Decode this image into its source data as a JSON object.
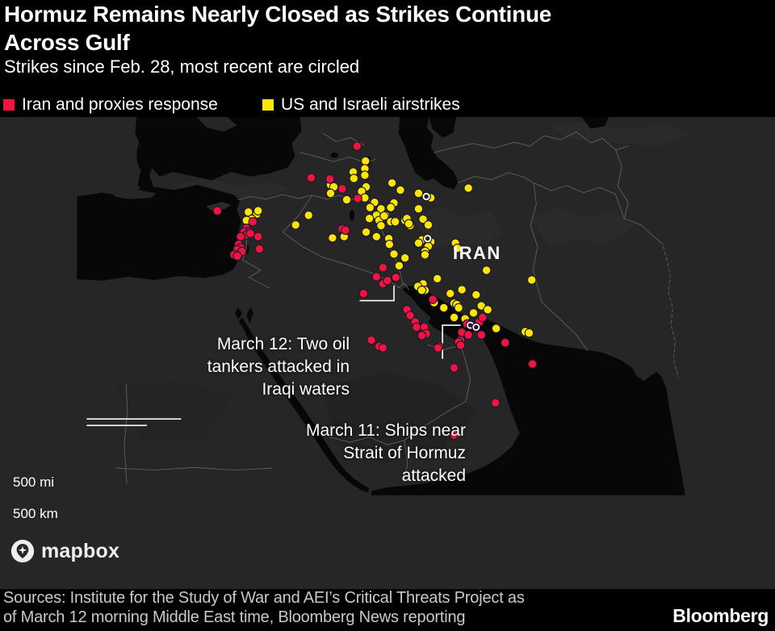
{
  "header": {
    "title_line1": "Hormuz Remains Nearly Closed as Strikes Continue",
    "title_line2": "Across Gulf",
    "subtitle": "Strikes since Feb. 28, most recent are circled",
    "legend": [
      {
        "label": "Iran and proxies response",
        "color": "#f2143e"
      },
      {
        "label": "US and Israeli airstrikes",
        "color": "#ffe600"
      }
    ]
  },
  "map": {
    "country_label": "IRAN",
    "annotations": [
      {
        "lines": [
          "March 12: Two oil",
          "tankers attacked in",
          "Iraqi waters"
        ]
      },
      {
        "lines": [
          "March 11: Ships near",
          "Strait of Hormuz",
          "attacked"
        ]
      }
    ],
    "scale": {
      "miles_label": "500 mi",
      "km_label": "500 km"
    },
    "attribution": "mapbox"
  },
  "footer": {
    "sources_line1": "Sources: Institute for the Study of War and AEI’s Critical Threats Project as",
    "sources_line2": "of March 12 morning Middle East time, Bloomberg News reporting",
    "brand": "Bloomberg"
  },
  "chart_data": {
    "type": "scatter",
    "title": "Hormuz Remains Nearly Closed as Strikes Continue Across Gulf",
    "subtitle": "Strikes since Feb. 28, most recent are circled",
    "coordinate_system": "screen pixels of 960x782 image, map area y 145-730",
    "legend_position": "top",
    "series": [
      {
        "name": "Iran and proxies response",
        "color": "#f2143e",
        "points": [
          [
            217,
            290
          ],
          [
            272,
            307
          ],
          [
            262,
            317
          ],
          [
            265,
            322
          ],
          [
            258,
            323
          ],
          [
            263,
            327
          ],
          [
            268,
            325
          ],
          [
            253,
            330
          ],
          [
            280,
            330
          ],
          [
            250,
            342
          ],
          [
            253,
            347
          ],
          [
            248,
            350
          ],
          [
            255,
            353
          ],
          [
            243,
            358
          ],
          [
            248,
            360
          ],
          [
            282,
            349
          ],
          [
            433,
            190
          ],
          [
            362,
            239
          ],
          [
            391,
            241
          ],
          [
            410,
            256
          ],
          [
            434,
            271
          ],
          [
            410,
            318
          ],
          [
            415,
            320
          ],
          [
            473,
            378
          ],
          [
            463,
            392
          ],
          [
            473,
            403
          ],
          [
            443,
            418
          ],
          [
            493,
            393
          ],
          [
            480,
            398
          ],
          [
            510,
            443
          ],
          [
            515,
            452
          ],
          [
            523,
            462
          ],
          [
            525,
            470
          ],
          [
            537,
            470
          ],
          [
            540,
            480
          ],
          [
            533,
            483
          ],
          [
            550,
            427
          ],
          [
            455,
            490
          ],
          [
            467,
            500
          ],
          [
            473,
            502
          ],
          [
            560,
            500
          ],
          [
            590,
            495
          ],
          [
            593,
            490
          ],
          [
            603,
            465
          ],
          [
            622,
            462
          ],
          [
            627,
            455
          ],
          [
            595,
            478
          ],
          [
            605,
            482
          ],
          [
            625,
            482
          ],
          [
            590,
            493
          ],
          [
            593,
            498
          ],
          [
            558,
            502
          ],
          [
            583,
            533
          ],
          [
            647,
            587
          ],
          [
            583,
            637
          ],
          [
            662,
            494
          ],
          [
            704,
            527
          ]
        ],
        "circled_points": [
          [
            608,
            467
          ],
          [
            617,
            470
          ]
        ]
      },
      {
        "name": "US and Israeli airstrikes",
        "color": "#ffe600",
        "points": [
          [
            265,
            292
          ],
          [
            278,
            295
          ],
          [
            280,
            290
          ],
          [
            270,
            303
          ],
          [
            262,
            305
          ],
          [
            338,
            312
          ],
          [
            358,
            297
          ],
          [
            392,
            250
          ],
          [
            397,
            253
          ],
          [
            392,
            263
          ],
          [
            417,
            273
          ],
          [
            395,
            332
          ],
          [
            413,
            330
          ],
          [
            446,
            213
          ],
          [
            445,
            225
          ],
          [
            427,
            230
          ],
          [
            445,
            235
          ],
          [
            428,
            240
          ],
          [
            447,
            253
          ],
          [
            440,
            260
          ],
          [
            445,
            270
          ],
          [
            460,
            277
          ],
          [
            453,
            285
          ],
          [
            470,
            287
          ],
          [
            463,
            297
          ],
          [
            477,
            297
          ],
          [
            467,
            305
          ],
          [
            485,
            307
          ],
          [
            452,
            302
          ],
          [
            447,
            323
          ],
          [
            463,
            330
          ],
          [
            482,
            332
          ],
          [
            487,
            247
          ],
          [
            500,
            258
          ],
          [
            490,
            278
          ],
          [
            507,
            305
          ],
          [
            515,
            313
          ],
          [
            475,
            298
          ],
          [
            485,
            285
          ],
          [
            492,
            307
          ],
          [
            510,
            302
          ],
          [
            513,
            310
          ],
          [
            528,
            263
          ],
          [
            547,
            270
          ],
          [
            528,
            287
          ],
          [
            535,
            303
          ],
          [
            543,
            312
          ],
          [
            605,
            255
          ],
          [
            470,
            313
          ],
          [
            482,
            333
          ],
          [
            483,
            342
          ],
          [
            533,
            335
          ],
          [
            547,
            338
          ],
          [
            528,
            340
          ],
          [
            543,
            345
          ],
          [
            538,
            353
          ],
          [
            585,
            340
          ],
          [
            588,
            348
          ],
          [
            490,
            357
          ],
          [
            507,
            363
          ],
          [
            498,
            375
          ],
          [
            538,
            358
          ],
          [
            633,
            382
          ],
          [
            703,
            397
          ],
          [
            557,
            395
          ],
          [
            535,
            403
          ],
          [
            538,
            413
          ],
          [
            577,
            418
          ],
          [
            595,
            412
          ],
          [
            617,
            420
          ],
          [
            552,
            432
          ],
          [
            567,
            440
          ],
          [
            625,
            437
          ],
          [
            635,
            443
          ],
          [
            613,
            448
          ],
          [
            583,
            433
          ],
          [
            600,
            457
          ],
          [
            583,
            455
          ],
          [
            648,
            472
          ],
          [
            693,
            477
          ],
          [
            699,
            479
          ],
          [
            527,
            407
          ],
          [
            533,
            413
          ],
          [
            587,
            435
          ],
          [
            590,
            440
          ]
        ],
        "circled_points": [
          [
            540,
            268
          ],
          [
            542,
            333
          ]
        ]
      }
    ]
  }
}
